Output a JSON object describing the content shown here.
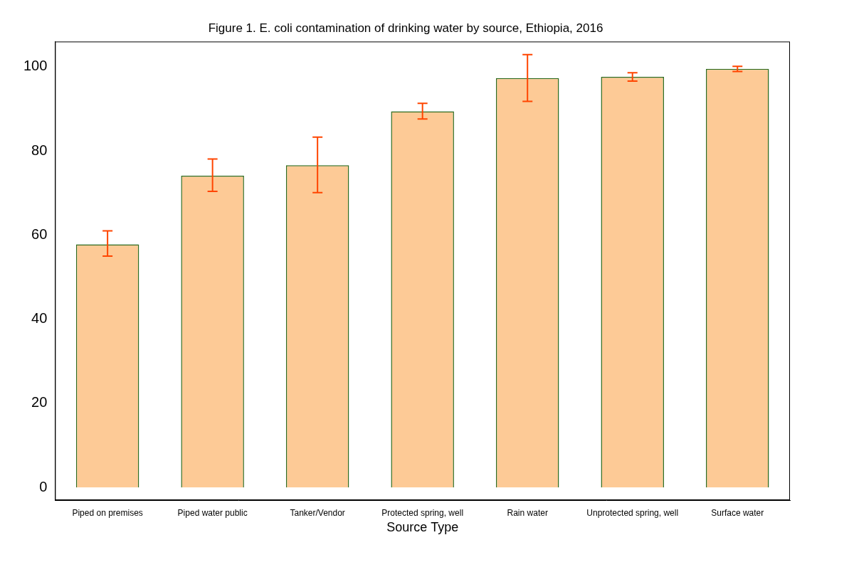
{
  "chart_data": {
    "type": "bar",
    "title": "Figure 1. E. coli contamination of drinking water by source, Ethiopia, 2016",
    "x_label": "Source Type",
    "categories": [
      "Piped on premises",
      "Piped water public",
      "Tanker/Vendor",
      "Protected spring, well",
      "Rain water",
      "Unprotected spring, well",
      "Surface water"
    ],
    "values": [
      57.8,
      74.1,
      76.6,
      89.4,
      97.3,
      97.6,
      99.5
    ],
    "error_lower": [
      55.0,
      70.4,
      70.1,
      87.6,
      91.8,
      96.6,
      98.9
    ],
    "error_upper": [
      61.0,
      78.1,
      83.3,
      91.3,
      102.9,
      98.6,
      100.1
    ],
    "color": "#fdca96",
    "ylim": [
      -3,
      106
    ],
    "yticks": [
      0,
      20,
      40,
      60,
      80,
      100
    ],
    "grid": false
  }
}
